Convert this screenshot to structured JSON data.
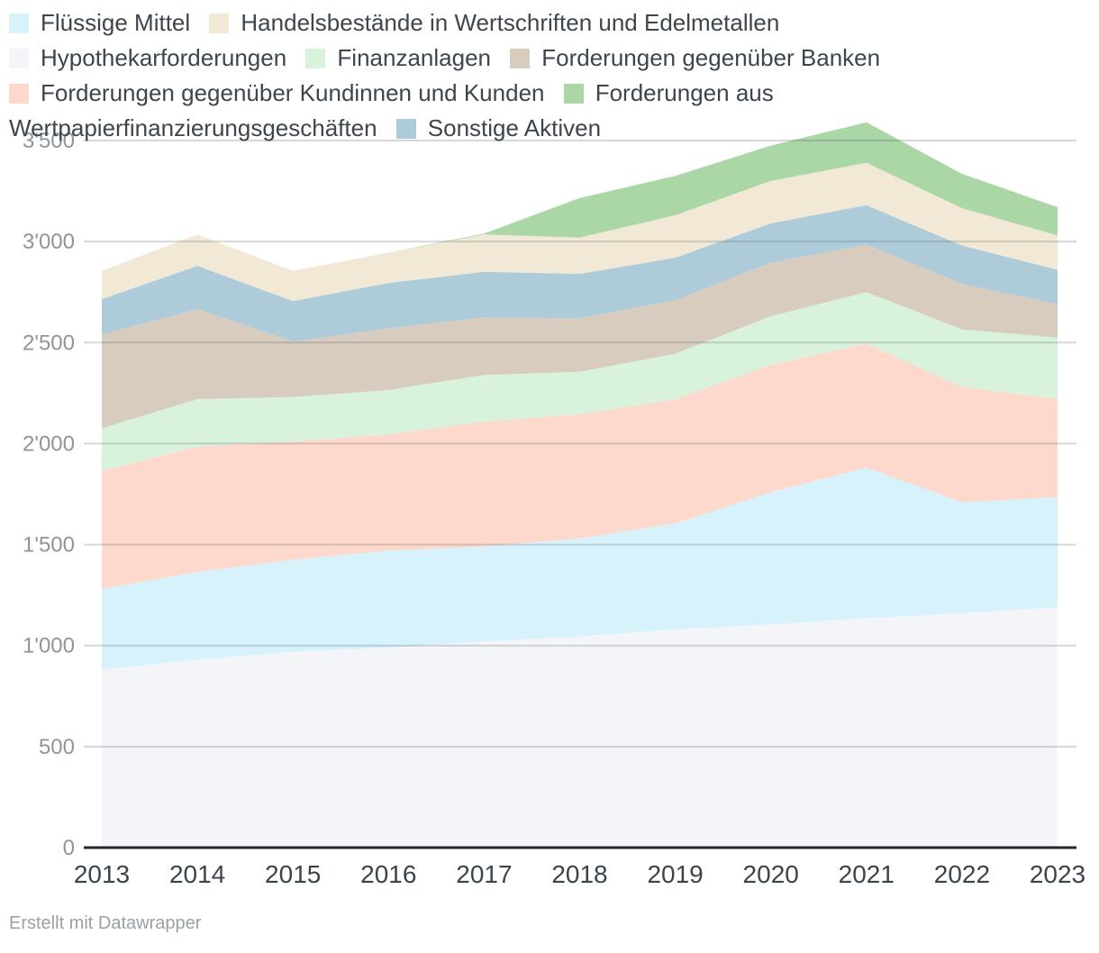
{
  "chart": {
    "footer": "Erstellt mit Datawrapper",
    "legend": {
      "position": "top",
      "items": [
        {
          "key": "fluessige-mittel",
          "label": "Flüssige Mittel",
          "color": "#d8f2fb"
        },
        {
          "key": "handelsbestaende",
          "label": "Handelsbestände in Wertschriften und Edelmetallen",
          "color": "#f1e9d5"
        },
        {
          "key": "hypothekarforderungen",
          "label": "Hypothekarforderungen",
          "color": "#f3f5f8"
        },
        {
          "key": "finanzanlagen",
          "label": "Finanzanlagen",
          "color": "#d9f2dc"
        },
        {
          "key": "forderungen-banken",
          "label": "Forderungen gegenüber Banken",
          "color": "#d7ccbe"
        },
        {
          "key": "forderungen-kunden",
          "label": "Forderungen gegenüber Kundinnen und Kunden",
          "color": "#fdd8cd"
        },
        {
          "key": "wertpapierfinanzierung",
          "label": "Forderungen aus Wertpapierfinanzierungsgeschäften",
          "color": "#abd7a6"
        },
        {
          "key": "sonstige-aktiven",
          "label": "Sonstige Aktiven",
          "color": "#aecbd9"
        }
      ]
    }
  },
  "chart_data": {
    "type": "area",
    "stacked": true,
    "title": "",
    "xlabel": "",
    "ylabel": "",
    "grid": "horizontal",
    "legend_position": "top",
    "ylim": [
      0,
      3500
    ],
    "ytick_interval": 500,
    "ytick_labels": [
      "0",
      "500",
      "1'000",
      "1'500",
      "2'000",
      "2'500",
      "3'000",
      "3'500"
    ],
    "categories": [
      "2013",
      "2014",
      "2015",
      "2016",
      "2017",
      "2018",
      "2019",
      "2020",
      "2021",
      "2022",
      "2023"
    ],
    "series": [
      {
        "key": "hypothekarforderungen",
        "name": "Hypothekarforderungen",
        "color": "#f3f5f8",
        "values": [
          880,
          930,
          970,
          990,
          1020,
          1045,
          1080,
          1105,
          1135,
          1160,
          1190
        ]
      },
      {
        "key": "fluessige-mittel",
        "name": "Flüssige Mittel",
        "color": "#d8f2fb",
        "values": [
          400,
          435,
          455,
          480,
          470,
          485,
          525,
          655,
          745,
          550,
          545
        ]
      },
      {
        "key": "forderungen-kunden",
        "name": "Forderungen gegenüber Kundinnen und Kunden",
        "color": "#fdd8cd",
        "values": [
          585,
          620,
          585,
          575,
          620,
          615,
          615,
          630,
          615,
          570,
          485
        ]
      },
      {
        "key": "finanzanlagen",
        "name": "Finanzanlagen",
        "color": "#d9f2dc",
        "values": [
          210,
          235,
          220,
          220,
          230,
          210,
          225,
          240,
          255,
          285,
          305
        ]
      },
      {
        "key": "forderungen-banken",
        "name": "Forderungen gegenüber Banken",
        "color": "#d7ccbe",
        "values": [
          465,
          445,
          275,
          305,
          285,
          265,
          265,
          265,
          235,
          225,
          165
        ]
      },
      {
        "key": "sonstige-aktiven",
        "name": "Sonstige Aktiven",
        "color": "#aecbd9",
        "values": [
          175,
          215,
          200,
          225,
          225,
          220,
          210,
          195,
          195,
          190,
          170
        ]
      },
      {
        "key": "handelsbestaende",
        "name": "Handelsbestände in Wertschriften und Edelmetallen",
        "color": "#f1e9d5",
        "values": [
          140,
          155,
          150,
          150,
          185,
          180,
          210,
          210,
          210,
          185,
          170
        ]
      },
      {
        "key": "wertpapierfinanzierung",
        "name": "Forderungen aus Wertpapierfinanzierungsgeschäften",
        "color": "#abd7a6",
        "values": [
          0,
          0,
          0,
          0,
          5,
          195,
          195,
          175,
          200,
          170,
          140
        ]
      }
    ]
  }
}
